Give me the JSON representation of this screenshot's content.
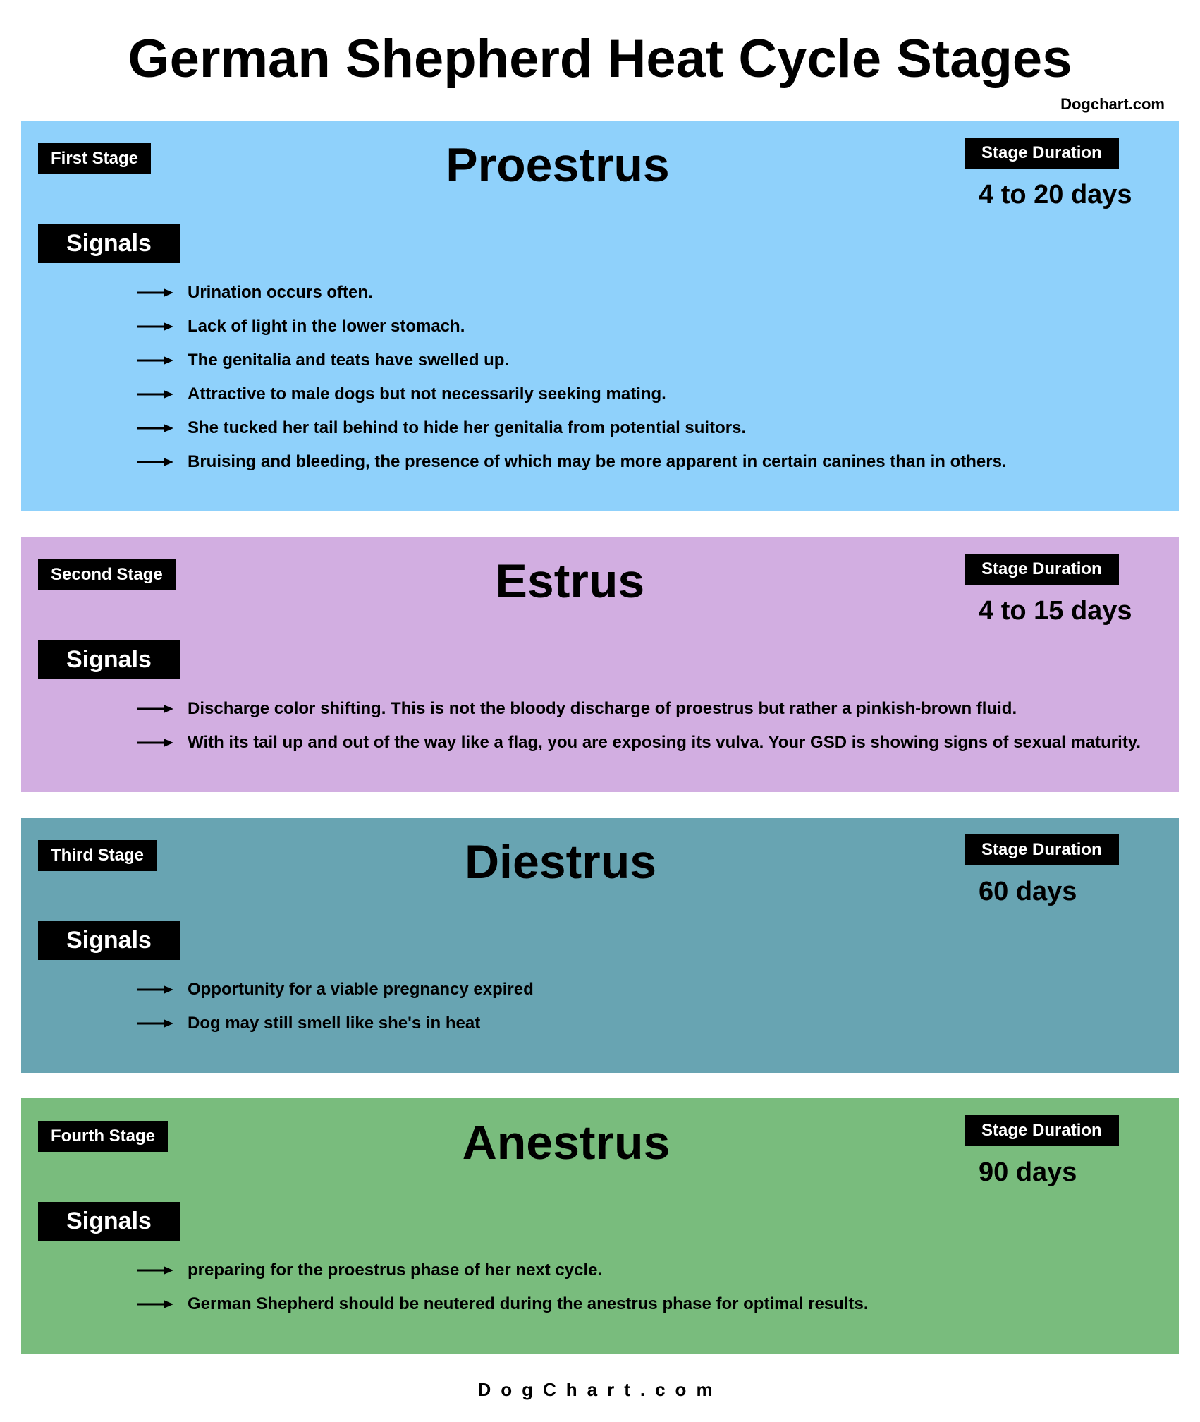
{
  "title": "German Shepherd Heat Cycle Stages",
  "header_credit": "Dogchart.com",
  "footer_credit": "DogChart.com",
  "duration_label": "Stage Duration",
  "signals_label": "Signals",
  "title_fontsize": 76,
  "stage_title_fontsize": 68,
  "signal_fontsize": 24,
  "background_color": "#ffffff",
  "text_color": "#000000",
  "pill_bg": "#000000",
  "pill_text": "#ffffff",
  "arrow_color": "#000000",
  "stages": [
    {
      "order_label": "First Stage",
      "name": "Proestrus",
      "duration": "4 to 20 days",
      "bg_color": "#8fd1fb",
      "signals": [
        "Urination occurs often.",
        "Lack of light in the lower stomach.",
        "The genitalia and teats have swelled up.",
        "Attractive to male dogs but not necessarily seeking mating.",
        "She tucked her tail behind to hide her genitalia from potential suitors.",
        "Bruising and bleeding, the presence of which may be more apparent in certain canines than in others."
      ]
    },
    {
      "order_label": "Second Stage",
      "name": "Estrus",
      "duration": "4 to 15 days",
      "bg_color": "#d2aee1",
      "signals": [
        "Discharge color shifting. This is not the bloody discharge of proestrus but rather a pinkish-brown fluid.",
        "With its tail up and out of the way like a flag, you are exposing its vulva. Your GSD is showing signs of sexual maturity."
      ]
    },
    {
      "order_label": "Third Stage",
      "name": "Diestrus",
      "duration": "60 days",
      "bg_color": "#68a4b2",
      "signals": [
        "Opportunity for a viable pregnancy expired",
        "Dog may still smell like she's in heat"
      ]
    },
    {
      "order_label": "Fourth Stage",
      "name": "Anestrus",
      "duration": "90 days",
      "bg_color": "#79bc7d",
      "signals": [
        "preparing for the proestrus phase of her next cycle.",
        "German Shepherd should be neutered during the anestrus phase for optimal results."
      ]
    }
  ]
}
